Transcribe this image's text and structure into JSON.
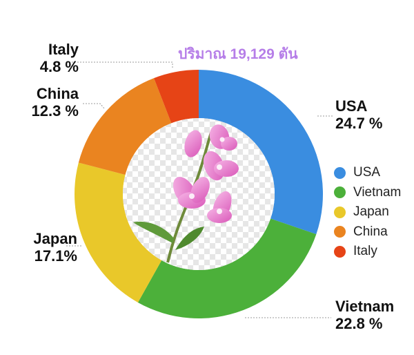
{
  "chart_data": {
    "type": "pie",
    "title": "ปริมาณ 19,129 ตัน",
    "categories": [
      "USA",
      "Vietnam",
      "Japan",
      "China",
      "Italy"
    ],
    "values": [
      24.7,
      22.8,
      17.1,
      12.3,
      4.8
    ],
    "labels": [
      "24.7 %",
      "22.8 %",
      "17.1%",
      "12.3 %",
      "4.8 %"
    ],
    "colors": [
      "#3a8de0",
      "#4cb03a",
      "#e9c82a",
      "#ea8420",
      "#e64416"
    ],
    "legend": "right"
  }
}
